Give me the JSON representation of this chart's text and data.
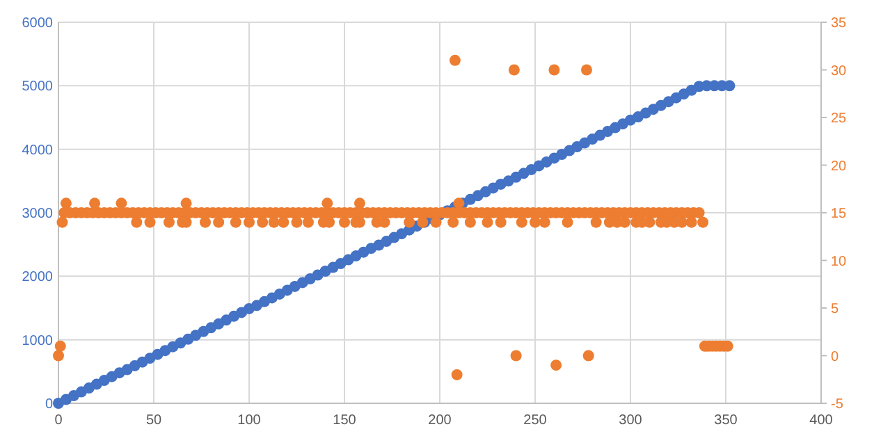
{
  "chart_data": {
    "type": "scatter",
    "xlim": [
      0,
      400
    ],
    "xticks": [
      0,
      50,
      100,
      150,
      200,
      250,
      300,
      350,
      400
    ],
    "ylim": [
      0,
      6000
    ],
    "yticks": [
      0,
      1000,
      2000,
      3000,
      4000,
      5000,
      6000
    ],
    "y2lim": [
      -5,
      35
    ],
    "y2ticks": [
      -5,
      0,
      5,
      10,
      15,
      20,
      25,
      30,
      35
    ],
    "grid": true,
    "marker": "circle",
    "series": [
      {
        "color": "#4472c4",
        "axis": "y",
        "x": [
          0,
          4,
          8,
          12,
          16,
          20,
          24,
          28,
          32,
          36,
          40,
          44,
          48,
          52,
          56,
          60,
          64,
          68,
          72,
          76,
          80,
          84,
          88,
          92,
          96,
          100,
          104,
          108,
          112,
          116,
          120,
          124,
          128,
          132,
          136,
          140,
          144,
          148,
          152,
          156,
          160,
          164,
          168,
          172,
          176,
          180,
          184,
          188,
          192,
          196,
          200,
          204,
          208,
          212,
          216,
          220,
          224,
          228,
          232,
          236,
          240,
          244,
          248,
          252,
          256,
          260,
          264,
          268,
          272,
          276,
          280,
          284,
          288,
          292,
          296,
          300,
          304,
          308,
          312,
          316,
          320,
          324,
          328,
          332,
          336,
          340,
          344,
          348,
          352
        ],
        "values": [
          0,
          60,
          120,
          180,
          240,
          300,
          360,
          420,
          480,
          530,
          590,
          650,
          710,
          770,
          830,
          890,
          950,
          1010,
          1070,
          1130,
          1190,
          1250,
          1310,
          1370,
          1430,
          1490,
          1540,
          1600,
          1660,
          1720,
          1780,
          1840,
          1900,
          1960,
          2020,
          2080,
          2140,
          2200,
          2260,
          2320,
          2380,
          2440,
          2490,
          2550,
          2610,
          2670,
          2730,
          2790,
          2850,
          2910,
          2970,
          3030,
          3090,
          3150,
          3210,
          3270,
          3330,
          3390,
          3450,
          3500,
          3560,
          3620,
          3680,
          3740,
          3800,
          3860,
          3920,
          3980,
          4040,
          4100,
          4160,
          4220,
          4280,
          4340,
          4400,
          4460,
          4510,
          4570,
          4630,
          4690,
          4750,
          4810,
          4870,
          4930,
          4990,
          5000,
          5000,
          5000,
          5000
        ]
      },
      {
        "color": "#ed7d31",
        "axis": "y2",
        "x": [
          3,
          6,
          9,
          12,
          15,
          18,
          21,
          24,
          27,
          30,
          33,
          36,
          39,
          42,
          45,
          48,
          51,
          54,
          57,
          60,
          63,
          66,
          69,
          72,
          75,
          78,
          81,
          84,
          87,
          90,
          93,
          96,
          99,
          102,
          105,
          108,
          111,
          114,
          117,
          120,
          123,
          126,
          129,
          132,
          135,
          138,
          141,
          144,
          147,
          150,
          153,
          156,
          159,
          162,
          165,
          168,
          171,
          174,
          177,
          180,
          183,
          186,
          189,
          192,
          195,
          198,
          201,
          204,
          207,
          210,
          213,
          216,
          219,
          222,
          225,
          228,
          231,
          234,
          237,
          240,
          243,
          246,
          249,
          252,
          255,
          258,
          261,
          264,
          267,
          270,
          273,
          276,
          279,
          282,
          285,
          288,
          291,
          294,
          297,
          300,
          303,
          306,
          309,
          312,
          315,
          318,
          321,
          324,
          327,
          330,
          333,
          336,
          2,
          41,
          48,
          58,
          65,
          67,
          77,
          84,
          93,
          100,
          107,
          113,
          118,
          125,
          131,
          139,
          142,
          150,
          156,
          158,
          167,
          171,
          184,
          191,
          198,
          207,
          216,
          225,
          232,
          243,
          250,
          255,
          267,
          282,
          289,
          293,
          297,
          303,
          306,
          310,
          316,
          319,
          323,
          327,
          332,
          338,
          4,
          19,
          33,
          67,
          141,
          158,
          210,
          0,
          1,
          208,
          239,
          260,
          277,
          209,
          240,
          261,
          278,
          339,
          341,
          343,
          345,
          347,
          349,
          351
        ],
        "values": [
          15,
          15,
          15,
          15,
          15,
          15,
          15,
          15,
          15,
          15,
          15,
          15,
          15,
          15,
          15,
          15,
          15,
          15,
          15,
          15,
          15,
          15,
          15,
          15,
          15,
          15,
          15,
          15,
          15,
          15,
          15,
          15,
          15,
          15,
          15,
          15,
          15,
          15,
          15,
          15,
          15,
          15,
          15,
          15,
          15,
          15,
          15,
          15,
          15,
          15,
          15,
          15,
          15,
          15,
          15,
          15,
          15,
          15,
          15,
          15,
          15,
          15,
          15,
          15,
          15,
          15,
          15,
          15,
          15,
          15,
          15,
          15,
          15,
          15,
          15,
          15,
          15,
          15,
          15,
          15,
          15,
          15,
          15,
          15,
          15,
          15,
          15,
          15,
          15,
          15,
          15,
          15,
          15,
          15,
          15,
          15,
          15,
          15,
          15,
          15,
          15,
          15,
          15,
          15,
          15,
          15,
          15,
          15,
          15,
          15,
          15,
          15,
          14,
          14,
          14,
          14,
          14,
          14,
          14,
          14,
          14,
          14,
          14,
          14,
          14,
          14,
          14,
          14,
          14,
          14,
          14,
          14,
          14,
          14,
          14,
          14,
          14,
          14,
          14,
          14,
          14,
          14,
          14,
          14,
          14,
          14,
          14,
          14,
          14,
          14,
          14,
          14,
          14,
          14,
          14,
          14,
          14,
          14,
          16,
          16,
          16,
          16,
          16,
          16,
          16,
          0,
          1,
          31,
          30,
          30,
          30,
          -2,
          0,
          -1,
          0,
          1,
          1,
          1,
          1,
          1,
          1,
          1
        ]
      }
    ]
  }
}
